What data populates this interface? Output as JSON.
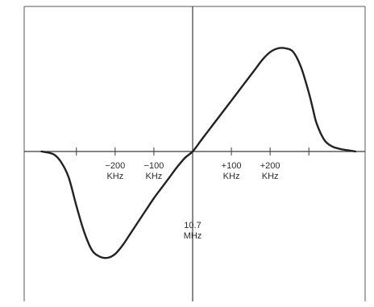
{
  "chart_data": {
    "type": "line",
    "title": "",
    "xlabel": "",
    "ylabel": "",
    "xlim": [
      -430,
      450
    ],
    "ylim": [
      -1.0,
      1.0
    ],
    "grid": false,
    "center_label": {
      "line1": "10.7",
      "line2": "MHz"
    },
    "x_ticks": [
      {
        "value": -300,
        "line1": "",
        "line2": ""
      },
      {
        "value": -200,
        "line1": "−200",
        "line2": "KHz"
      },
      {
        "value": -100,
        "line1": "−100",
        "line2": "KHz"
      },
      {
        "value": 100,
        "line1": "+100",
        "line2": "KHz"
      },
      {
        "value": 200,
        "line1": "+200",
        "line2": "KHz"
      },
      {
        "value": 300,
        "line1": "",
        "line2": ""
      }
    ],
    "series": [
      {
        "color": "#222222",
        "x": [
          -390,
          -360,
          -340,
          -320,
          -300,
          -280,
          -260,
          -240,
          -220,
          -200,
          -180,
          -160,
          -140,
          -120,
          -100,
          -80,
          -60,
          -40,
          -20,
          0,
          20,
          40,
          60,
          80,
          100,
          120,
          140,
          160,
          180,
          200,
          220,
          240,
          260,
          280,
          300,
          310,
          320,
          340,
          360,
          380,
          400,
          420
        ],
        "y": [
          0.0,
          -0.02,
          -0.08,
          -0.2,
          -0.42,
          -0.62,
          -0.76,
          -0.81,
          -0.82,
          -0.79,
          -0.72,
          -0.63,
          -0.54,
          -0.45,
          -0.36,
          -0.28,
          -0.2,
          -0.12,
          -0.05,
          0.0,
          0.08,
          0.16,
          0.24,
          0.32,
          0.4,
          0.48,
          0.56,
          0.64,
          0.72,
          0.78,
          0.81,
          0.81,
          0.78,
          0.66,
          0.46,
          0.34,
          0.22,
          0.09,
          0.04,
          0.02,
          0.01,
          0.0
        ]
      }
    ]
  }
}
